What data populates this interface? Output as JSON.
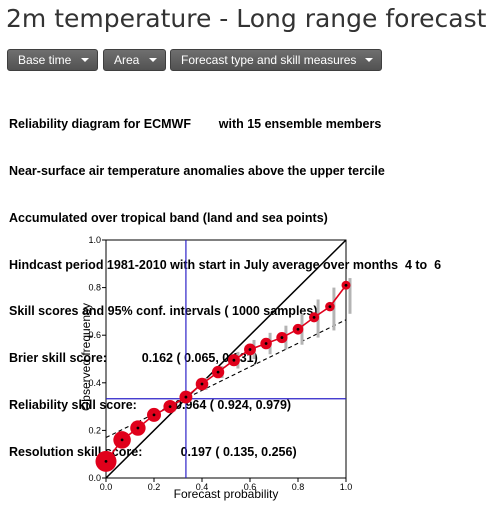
{
  "page": {
    "title": "2m temperature - Long range forecast"
  },
  "toolbar": {
    "buttons": [
      "Base time",
      "Area",
      "Forecast type and skill measures"
    ]
  },
  "info_lines": [
    "Reliability diagram for ECMWF        with 15 ensemble members",
    "Near-surface air temperature anomalies above the upper tercile",
    "Accumulated over tropical band (land and sea points)",
    "Hindcast period 1981-2010 with start in July average over months  4 to  6",
    "Skill scores and 95% conf. intervals ( 1000 samples)",
    "Brier skill score:          0.162 ( 0.065, 0.231)",
    "Reliability skill score:           0.964 ( 0.924, 0.979)",
    "Resolution skill score:           0.197 ( 0.135, 0.256)"
  ],
  "chart_data": {
    "type": "scatter",
    "xlabel": "Forecast probability",
    "ylabel": "Observed frequency",
    "xlim": [
      0,
      1
    ],
    "ylim": [
      0,
      1
    ],
    "xticks": [
      "0.0",
      "0.2",
      "0.4",
      "0.6",
      "0.8",
      "1.0"
    ],
    "yticks": [
      "0.0",
      "0.2",
      "0.4",
      "0.6",
      "0.8",
      "1.0"
    ],
    "grid": false,
    "climatology_x": 0.333,
    "climatology_y": 0.333,
    "fit_line": {
      "x": [
        0,
        1
      ],
      "y": [
        0.17,
        0.665
      ]
    },
    "points": [
      {
        "x": 0.0,
        "y": 0.07,
        "weight": 1.0,
        "ci": [
          0.06,
          0.08
        ]
      },
      {
        "x": 0.067,
        "y": 0.16,
        "weight": 0.75,
        "ci": [
          0.15,
          0.17
        ]
      },
      {
        "x": 0.133,
        "y": 0.21,
        "weight": 0.6,
        "ci": [
          0.2,
          0.22
        ]
      },
      {
        "x": 0.2,
        "y": 0.265,
        "weight": 0.5,
        "ci": [
          0.25,
          0.28
        ]
      },
      {
        "x": 0.267,
        "y": 0.3,
        "weight": 0.45,
        "ci": [
          0.28,
          0.32
        ]
      },
      {
        "x": 0.333,
        "y": 0.34,
        "weight": 0.42,
        "ci": [
          0.32,
          0.36
        ]
      },
      {
        "x": 0.4,
        "y": 0.395,
        "weight": 0.4,
        "ci": [
          0.37,
          0.42
        ]
      },
      {
        "x": 0.467,
        "y": 0.445,
        "weight": 0.38,
        "ci": [
          0.42,
          0.47
        ]
      },
      {
        "x": 0.533,
        "y": 0.495,
        "weight": 0.36,
        "ci": [
          0.46,
          0.53
        ]
      },
      {
        "x": 0.6,
        "y": 0.54,
        "weight": 0.35,
        "ci": [
          0.5,
          0.58
        ]
      },
      {
        "x": 0.667,
        "y": 0.565,
        "weight": 0.32,
        "ci": [
          0.52,
          0.61
        ]
      },
      {
        "x": 0.733,
        "y": 0.59,
        "weight": 0.3,
        "ci": [
          0.54,
          0.64
        ]
      },
      {
        "x": 0.8,
        "y": 0.625,
        "weight": 0.26,
        "ci": [
          0.56,
          0.69
        ]
      },
      {
        "x": 0.867,
        "y": 0.675,
        "weight": 0.22,
        "ci": [
          0.59,
          0.75
        ]
      },
      {
        "x": 0.933,
        "y": 0.72,
        "weight": 0.18,
        "ci": [
          0.62,
          0.8
        ]
      },
      {
        "x": 1.0,
        "y": 0.81,
        "weight": 0.14,
        "ci": [
          0.69,
          0.84
        ]
      }
    ],
    "colors": {
      "reliability": "#e0001b",
      "diagonal": "#000000",
      "climatology": "#2d23c8",
      "ci": "#b4b4b4"
    }
  }
}
